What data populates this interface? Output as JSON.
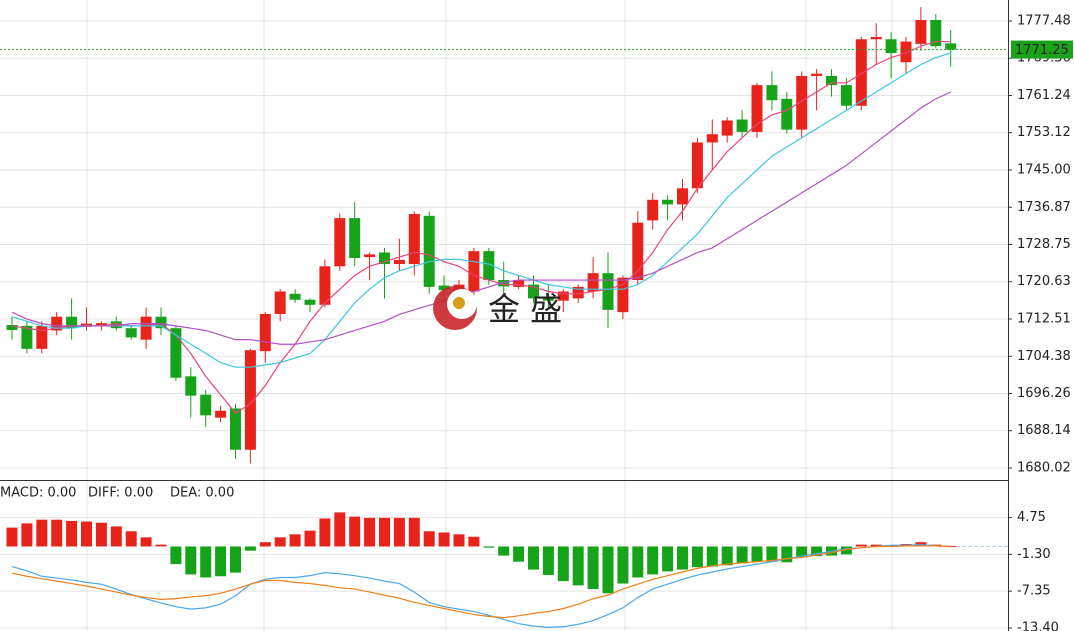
{
  "chart_data": [
    {
      "type": "candlestick",
      "up_color": "#e8231b",
      "down_color": "#16a31a",
      "open": [
        1711.2,
        1711,
        1706,
        1710,
        1713,
        1710.8,
        1711,
        1712,
        1710.5,
        1708,
        1713,
        1710.5,
        1700,
        1696,
        1691,
        1693,
        1684,
        1705.5,
        1713.6,
        1718,
        1716.7,
        1715.6,
        1724,
        1734.5,
        1726,
        1727,
        1724.5,
        1724.5,
        1735,
        1719.8,
        1718.5,
        1718.5,
        1727.3,
        1721,
        1719.5,
        1720,
        1717,
        1716.5,
        1717,
        1718.5,
        1722.5,
        1714,
        1721,
        1734,
        1738.5,
        1737.5,
        1741,
        1751,
        1752.5,
        1756,
        1753.3,
        1763.5,
        1760.5,
        1753.8,
        1765.5,
        1765.5,
        1763.5,
        1759,
        1773.5,
        1773.5,
        1768.5,
        1772.5,
        1777.7,
        1772.6
      ],
      "high": [
        1713,
        1712,
        1712,
        1714,
        1717,
        1715,
        1712,
        1713,
        1711,
        1715,
        1715,
        1711,
        1702,
        1697,
        1693.6,
        1694,
        1706,
        1714,
        1719,
        1719,
        1717,
        1725.5,
        1735.5,
        1738,
        1727,
        1728,
        1730,
        1736,
        1736,
        1722,
        1721,
        1728,
        1728,
        1725,
        1722,
        1722,
        1720,
        1719,
        1720,
        1726,
        1727,
        1722,
        1736,
        1740,
        1739.5,
        1743,
        1752,
        1756,
        1756.5,
        1758,
        1764,
        1766.5,
        1762,
        1766.5,
        1767,
        1767,
        1765,
        1774,
        1777,
        1775,
        1774,
        1780.5,
        1779,
        1775.5
      ],
      "low": [
        1708,
        1705,
        1705,
        1709,
        1708,
        1710,
        1710,
        1710,
        1708,
        1706,
        1709,
        1699,
        1691,
        1689,
        1690,
        1682,
        1681,
        1703,
        1712,
        1716,
        1714,
        1715,
        1723,
        1724,
        1721,
        1717,
        1723,
        1722,
        1718,
        1716,
        1717,
        1717,
        1720,
        1718,
        1719,
        1716,
        1715,
        1714,
        1716,
        1717,
        1710.5,
        1712.5,
        1720,
        1732,
        1734,
        1734,
        1740,
        1745,
        1751,
        1752,
        1752,
        1758,
        1753,
        1752,
        1758,
        1761,
        1758,
        1758,
        1768,
        1765,
        1766,
        1771,
        1771.5,
        1767.5
      ],
      "close": [
        1710.1,
        1706,
        1711,
        1713,
        1710.5,
        1711.5,
        1711.6,
        1710.5,
        1708.5,
        1713,
        1710.5,
        1699.7,
        1695.8,
        1691.5,
        1692.5,
        1684,
        1705.7,
        1713.6,
        1718.5,
        1716.7,
        1715.6,
        1724,
        1734.5,
        1725.8,
        1726.6,
        1724.5,
        1725.4,
        1735.4,
        1719.5,
        1718.8,
        1720,
        1727.3,
        1721,
        1719.6,
        1721,
        1717,
        1716.5,
        1718.5,
        1719.5,
        1722.5,
        1714.5,
        1721.5,
        1733.5,
        1738.5,
        1737.5,
        1741,
        1751,
        1752.8,
        1755.8,
        1753.3,
        1763.5,
        1760.2,
        1753.8,
        1765.5,
        1766,
        1763.5,
        1759,
        1773.5,
        1774,
        1770.5,
        1773,
        1777.7,
        1772,
        1771.25
      ],
      "lines": [
        {
          "color": "#e8447a",
          "values": [
            1711,
            1710.5,
            1710,
            1710.5,
            1711,
            1711,
            1711,
            1711.5,
            1711,
            1711,
            1711.5,
            1709,
            1705,
            1700,
            1696,
            1692,
            1694,
            1698,
            1703,
            1707,
            1712,
            1716,
            1719,
            1722,
            1724,
            1725,
            1726,
            1727,
            1726.5,
            1725,
            1724,
            1722,
            1721,
            1720,
            1720,
            1719.5,
            1718.5,
            1718,
            1718,
            1718.5,
            1719,
            1720,
            1723,
            1727,
            1732,
            1736,
            1741,
            1745,
            1749,
            1752,
            1755,
            1757,
            1758,
            1760,
            1762,
            1764,
            1764,
            1766,
            1768,
            1769.5,
            1770.5,
            1772,
            1773,
            1773
          ]
        },
        {
          "color": "#3ec6e0",
          "values": [
            1713,
            1712,
            1711,
            1710.5,
            1710.5,
            1711,
            1711,
            1711,
            1711,
            1711,
            1711,
            1709,
            1707,
            1705,
            1703,
            1702,
            1702,
            1702.5,
            1703,
            1704,
            1705,
            1708,
            1712,
            1716,
            1719,
            1721.5,
            1723,
            1724,
            1725,
            1725.5,
            1725.5,
            1725,
            1724.5,
            1723,
            1722,
            1721,
            1720,
            1719.5,
            1719,
            1719,
            1719,
            1719,
            1720,
            1722,
            1725,
            1728,
            1731,
            1735,
            1739,
            1742,
            1745,
            1748,
            1750,
            1752,
            1754,
            1756,
            1758,
            1760,
            1762,
            1764,
            1766,
            1768,
            1769.5,
            1770.5
          ]
        },
        {
          "color": "#b54fc8",
          "values": [
            1714,
            1712.5,
            1711.5,
            1711,
            1711,
            1711,
            1711,
            1711,
            1711.5,
            1711.5,
            1711.5,
            1711,
            1710.5,
            1710,
            1709,
            1708,
            1708,
            1707.5,
            1707,
            1707,
            1707.5,
            1708,
            1709,
            1710,
            1711,
            1712,
            1713.5,
            1714.5,
            1715.5,
            1716.5,
            1717.5,
            1718.5,
            1719.5,
            1720.5,
            1721,
            1721,
            1721,
            1721,
            1721,
            1721,
            1721,
            1721,
            1721.5,
            1722.5,
            1724,
            1725.5,
            1727,
            1728,
            1730,
            1732,
            1734,
            1736,
            1738,
            1740,
            1742,
            1744,
            1746,
            1748.5,
            1751,
            1753.5,
            1756,
            1758.5,
            1760.5,
            1762
          ]
        }
      ],
      "last_price": 1771.25,
      "last_price_color": "#1aa31a",
      "watermark": "金 盛",
      "ylim": [
        1677.4,
        1782.06
      ],
      "yticks": [
        1777.48,
        1769.36,
        1761.24,
        1753.12,
        {
          "value": 1745,
          "label": "1745.00"
        },
        1736.87,
        1728.75,
        1720.63,
        1712.51,
        1704.38,
        1696.26,
        1688.14,
        1680.02
      ],
      "grid": true
    },
    {
      "type": "macd",
      "series": [
        {
          "name": "MACD: 0.00",
          "color": "#e8231b",
          "up_color": "#e8231b",
          "down_color": "#16a31a",
          "values": [
            3.1,
            3.8,
            4.4,
            4.4,
            4.2,
            4.1,
            3.9,
            3.3,
            2.5,
            1.5,
            0.3,
            -2.9,
            -4.6,
            -5.1,
            -4.9,
            -4.3,
            -0.7,
            0.7,
            1.5,
            2.0,
            2.6,
            4.6,
            5.6,
            4.9,
            4.7,
            4.7,
            4.7,
            4.7,
            2.5,
            2.3,
            2.0,
            1.6,
            -0.2,
            -1.5,
            -2.5,
            -3.8,
            -4.7,
            -5.7,
            -6.4,
            -7.0,
            -7.7,
            -6.1,
            -5.1,
            -4.6,
            -4.1,
            -3.8,
            -3.4,
            -3.3,
            -3.1,
            -2.8,
            -2.5,
            -2.5,
            -2.6,
            -1.8,
            -1.6,
            -1.5,
            -1.3,
            0.3,
            0.3,
            0.2,
            0.4,
            0.7,
            0.3,
            0.1
          ]
        },
        {
          "name": "DIFF: 0.00",
          "color": "#4aa8e8",
          "values": [
            -3.3,
            -4.0,
            -4.9,
            -5.2,
            -5.5,
            -5.9,
            -6.2,
            -7.0,
            -7.9,
            -8.6,
            -9.3,
            -9.9,
            -10.3,
            -10.1,
            -9.5,
            -8.1,
            -6.2,
            -5.4,
            -5.1,
            -5.1,
            -4.8,
            -4.3,
            -4.5,
            -4.8,
            -5.2,
            -5.7,
            -6.1,
            -7.5,
            -9.2,
            -9.9,
            -10.3,
            -10.7,
            -11.3,
            -12.0,
            -12.7,
            -13.1,
            -13.3,
            -13.2,
            -12.8,
            -12.2,
            -11.2,
            -10.1,
            -8.4,
            -7.0,
            -6.2,
            -5.4,
            -4.7,
            -4.2,
            -3.7,
            -3.3,
            -2.9,
            -2.5,
            -2.0,
            -1.6,
            -1.2,
            -0.8,
            -0.4,
            -0.2,
            0,
            0.2,
            0.2,
            0.3,
            0.1,
            0
          ]
        },
        {
          "name": "DEA: 0.00",
          "color": "#f07f1a",
          "values": [
            -4.4,
            -4.9,
            -5.3,
            -5.7,
            -6.1,
            -6.5,
            -7.0,
            -7.5,
            -8.0,
            -8.4,
            -8.7,
            -8.6,
            -8.3,
            -8.1,
            -7.7,
            -7.0,
            -6.2,
            -5.6,
            -5.6,
            -5.9,
            -6.1,
            -6.4,
            -6.8,
            -7.0,
            -7.5,
            -8.0,
            -8.5,
            -9.2,
            -9.7,
            -10.2,
            -10.7,
            -11.2,
            -11.5,
            -11.7,
            -11.4,
            -11.0,
            -10.7,
            -10.2,
            -9.5,
            -8.6,
            -8.0,
            -7.0,
            -6.2,
            -5.4,
            -4.8,
            -4.2,
            -3.6,
            -3.2,
            -2.9,
            -2.7,
            -2.5,
            -2.3,
            -2.0,
            -1.8,
            -1.4,
            -1.0,
            -0.5,
            -0.2,
            0,
            0,
            0.1,
            0.1,
            0.1,
            0
          ]
        }
      ],
      "ylim": [
        -13.9,
        10.6
      ],
      "yticks": [
        4.75,
        {
          "value": -1.3,
          "label": "-1.30"
        },
        -7.35,
        {
          "value": -13.4,
          "label": "-13.40"
        }
      ],
      "grid": true
    }
  ]
}
